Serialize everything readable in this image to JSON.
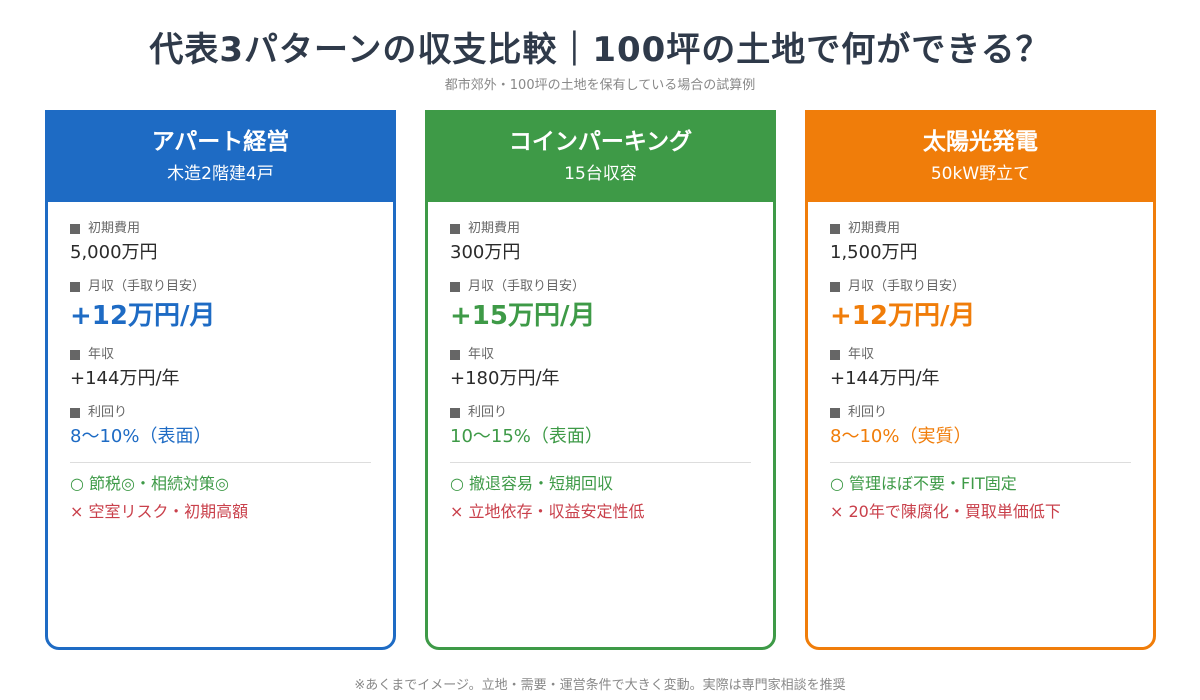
{
  "title": "代表3パターンの収支比較｜100坪の土地で何ができる？",
  "subtitle": "都市郊外・100坪の土地を保有している場合の試算例",
  "footnote": "※あくまでイメージ。立地・需要・運営条件で大きく変動。実際は専門家相談を推奨",
  "labels": {
    "initial_cost": "初期費用",
    "monthly": "月収（手取り目安）",
    "annual": "年収",
    "yield": "利回り"
  },
  "colors": {
    "apartment": "#1e6bc4",
    "parking": "#3e9a47",
    "solar": "#f07d0a",
    "pro": "#3e9a47",
    "con": "#c9404b"
  },
  "cards": [
    {
      "title": "アパート経営",
      "subtitle": "木造2階建4戸",
      "initial_cost": "5,000万円",
      "monthly": "+12万円/月",
      "annual": "+144万円/年",
      "yield": "8〜10%（表面）",
      "pro": "○ 節税◎・相続対策◎",
      "con": "× 空室リスク・初期高額"
    },
    {
      "title": "コインパーキング",
      "subtitle": "15台収容",
      "initial_cost": "300万円",
      "monthly": "+15万円/月",
      "annual": "+180万円/年",
      "yield": "10〜15%（表面）",
      "pro": "○ 撤退容易・短期回収",
      "con": "× 立地依存・収益安定性低"
    },
    {
      "title": "太陽光発電",
      "subtitle": "50kW野立て",
      "initial_cost": "1,500万円",
      "monthly": "+12万円/月",
      "annual": "+144万円/年",
      "yield": "8〜10%（実質）",
      "pro": "○ 管理ほぼ不要・FIT固定",
      "con": "× 20年で陳腐化・買取単価低下"
    }
  ]
}
